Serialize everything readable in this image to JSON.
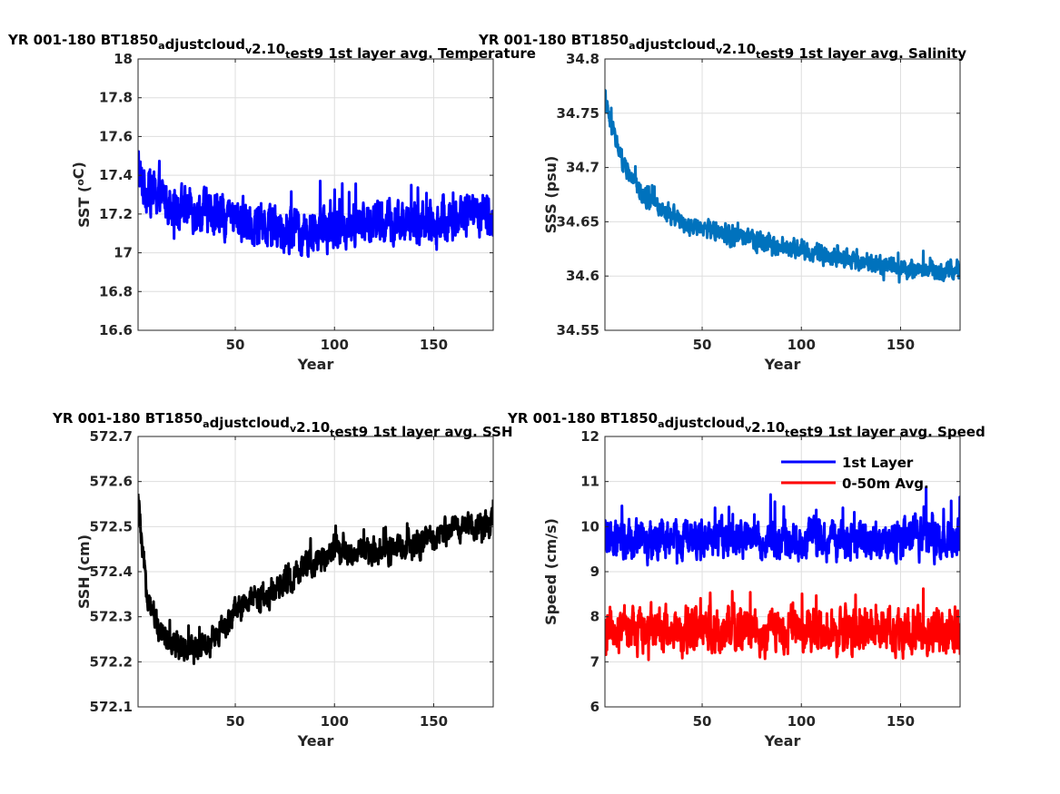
{
  "chart_data": [
    {
      "id": "sst",
      "type": "line",
      "title": "YR 001-180 BT1850_adjustcloud_v2.10_test9 1st layer avg. Temperature",
      "xlabel": "Year",
      "ylabel": "SST (^oC)",
      "xlim": [
        1,
        180
      ],
      "ylim": [
        16.6,
        18
      ],
      "xticks": [
        50,
        100,
        150
      ],
      "yticks": [
        16.6,
        16.8,
        17,
        17.2,
        17.4,
        17.6,
        17.8,
        18
      ],
      "ytick_labels": [
        "16.6",
        "16.8",
        "17",
        "17.2",
        "17.4",
        "17.6",
        "17.8",
        "18"
      ],
      "grid": true,
      "series": [
        {
          "color": "#0000ff",
          "description_points": [
            [
              1,
              17.45
            ],
            [
              3,
              17.35
            ],
            [
              10,
              17.3
            ],
            [
              20,
              17.25
            ],
            [
              40,
              17.2
            ],
            [
              60,
              17.15
            ],
            [
              80,
              17.12
            ],
            [
              90,
              17.1
            ],
            [
              110,
              17.15
            ],
            [
              130,
              17.15
            ],
            [
              150,
              17.15
            ],
            [
              165,
              17.2
            ],
            [
              180,
              17.2
            ]
          ],
          "amplitude": 0.17
        }
      ]
    },
    {
      "id": "sss",
      "type": "line",
      "title": "YR 001-180 BT1850_adjustcloud_v2.10_test9 1st layer avg. Salinity",
      "xlabel": "Year",
      "ylabel": "SSS (psu)",
      "xlim": [
        1,
        180
      ],
      "ylim": [
        34.55,
        34.8
      ],
      "xticks": [
        50,
        100,
        150
      ],
      "yticks": [
        34.55,
        34.6,
        34.65,
        34.7,
        34.75,
        34.8
      ],
      "ytick_labels": [
        "34.55",
        "34.6",
        "34.65",
        "34.7",
        "34.75",
        "34.8"
      ],
      "grid": true,
      "series": [
        {
          "color": "#0072bd",
          "description_points": [
            [
              1,
              34.765
            ],
            [
              3,
              34.745
            ],
            [
              10,
              34.705
            ],
            [
              20,
              34.675
            ],
            [
              40,
              34.65
            ],
            [
              60,
              34.64
            ],
            [
              80,
              34.63
            ],
            [
              100,
              34.625
            ],
            [
              120,
              34.615
            ],
            [
              140,
              34.61
            ],
            [
              160,
              34.605
            ],
            [
              180,
              34.605
            ]
          ],
          "amplitude": 0.013
        }
      ]
    },
    {
      "id": "ssh",
      "type": "line",
      "title": "YR 001-180 BT1850_adjustcloud_v2.10_test9 1st layer avg. SSH",
      "xlabel": "Year",
      "ylabel": "SSH (cm)",
      "xlim": [
        1,
        180
      ],
      "ylim": [
        572.1,
        572.7
      ],
      "xticks": [
        50,
        100,
        150
      ],
      "yticks": [
        572.1,
        572.2,
        572.3,
        572.4,
        572.5,
        572.6,
        572.7
      ],
      "ytick_labels": [
        "572.1",
        "572.2",
        "572.3",
        "572.4",
        "572.5",
        "572.6",
        "572.7"
      ],
      "grid": true,
      "series": [
        {
          "color": "#000000",
          "description_points": [
            [
              1,
              572.56
            ],
            [
              3,
              572.45
            ],
            [
              6,
              572.33
            ],
            [
              10,
              572.29
            ],
            [
              20,
              572.23
            ],
            [
              30,
              572.23
            ],
            [
              40,
              572.25
            ],
            [
              50,
              572.31
            ],
            [
              60,
              572.34
            ],
            [
              70,
              572.35
            ],
            [
              80,
              572.39
            ],
            [
              90,
              572.42
            ],
            [
              100,
              572.45
            ],
            [
              110,
              572.44
            ],
            [
              120,
              572.45
            ],
            [
              130,
              572.45
            ],
            [
              140,
              572.46
            ],
            [
              150,
              572.47
            ],
            [
              160,
              572.5
            ],
            [
              170,
              572.5
            ],
            [
              180,
              572.51
            ]
          ],
          "amplitude": 0.045
        }
      ]
    },
    {
      "id": "speed",
      "type": "line",
      "title": "YR 001-180 BT1850_adjustcloud_v2.10_test9 1st layer avg. Speed",
      "xlabel": "Year",
      "ylabel": "Speed (cm/s)",
      "xlim": [
        1,
        180
      ],
      "ylim": [
        6,
        12
      ],
      "xticks": [
        50,
        100,
        150
      ],
      "yticks": [
        6,
        7,
        8,
        9,
        10,
        11,
        12
      ],
      "ytick_labels": [
        "6",
        "7",
        "8",
        "9",
        "10",
        "11",
        "12"
      ],
      "grid": true,
      "legend": {
        "position": "top-right",
        "entries": [
          "1st Layer",
          "0-50m Avg."
        ]
      },
      "series": [
        {
          "name": "1st Layer",
          "color": "#0000ff",
          "description_points": [
            [
              1,
              9.7
            ],
            [
              180,
              9.7
            ]
          ],
          "amplitude": 0.65
        },
        {
          "name": "0-50m Avg.",
          "color": "#ff0000",
          "description_points": [
            [
              1,
              7.7
            ],
            [
              180,
              7.7
            ]
          ],
          "amplitude": 0.75
        }
      ]
    }
  ]
}
